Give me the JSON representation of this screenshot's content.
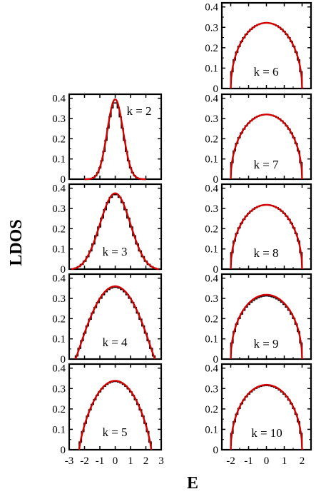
{
  "axes": {
    "xlabel": "E",
    "ylabel": "LDOS"
  },
  "colors": {
    "histogram": "#000000",
    "curve": "#d40000"
  },
  "chart_data": [
    {
      "type": "line",
      "label": "k = 2",
      "bandwidth": 2,
      "curve_peak": 0.395,
      "hist_peak": 0.38,
      "ylim": [
        0,
        0.42
      ],
      "yticks": [
        "0",
        "0.1",
        "0.2",
        "0.3",
        "0.4"
      ],
      "xlim": [
        -3,
        3
      ]
    },
    {
      "type": "line",
      "label": "k = 3",
      "bandwidth": 2.85,
      "curve_peak": 0.375,
      "hist_peak": 0.37,
      "ylim": [
        0,
        0.42
      ],
      "yticks": [
        "0",
        "0.1",
        "0.2",
        "0.3",
        "0.4"
      ],
      "xlim": [
        -3,
        3
      ]
    },
    {
      "type": "line",
      "label": "k = 4",
      "bandwidth": 2.6,
      "curve_peak": 0.36,
      "hist_peak": 0.355,
      "ylim": [
        0,
        0.42
      ],
      "yticks": [
        "0",
        "0.1",
        "0.2",
        "0.3",
        "0.4"
      ],
      "xlim": [
        -3,
        3
      ]
    },
    {
      "type": "line",
      "label": "k = 5",
      "bandwidth": 2.35,
      "curve_peak": 0.338,
      "hist_peak": 0.335,
      "ylim": [
        0,
        0.42
      ],
      "yticks": [
        "0",
        "0.1",
        "0.2",
        "0.3",
        "0.4"
      ],
      "xlim": [
        -3,
        3
      ],
      "xticks": [
        "-3",
        "-2",
        "-1",
        "0",
        "1",
        "2",
        "3"
      ]
    },
    {
      "type": "line",
      "label": "k = 6",
      "bandwidth": 2.0,
      "curve_peak": 0.322,
      "hist_peak": 0.322,
      "ylim": [
        0,
        0.42
      ],
      "yticks": [
        "0",
        "0.1",
        "0.2",
        "0.3",
        "0.4"
      ],
      "xlim": [
        -2.5,
        2.5
      ]
    },
    {
      "type": "line",
      "label": "k = 7",
      "bandwidth": 2.0,
      "curve_peak": 0.32,
      "hist_peak": 0.32,
      "ylim": [
        0,
        0.42
      ],
      "yticks": [
        "0",
        "0.1",
        "0.2",
        "0.3",
        "0.4"
      ],
      "xlim": [
        -2.5,
        2.5
      ]
    },
    {
      "type": "line",
      "label": "k = 8",
      "bandwidth": 2.0,
      "curve_peak": 0.318,
      "hist_peak": 0.318,
      "ylim": [
        0,
        0.42
      ],
      "yticks": [
        "0",
        "0.1",
        "0.2",
        "0.3",
        "0.4"
      ],
      "xlim": [
        -2.5,
        2.5
      ]
    },
    {
      "type": "line",
      "label": "k = 9",
      "bandwidth": 2.0,
      "curve_peak": 0.318,
      "hist_peak": 0.312,
      "ylim": [
        0,
        0.42
      ],
      "yticks": [
        "0",
        "0.1",
        "0.2",
        "0.3",
        "0.4"
      ],
      "xlim": [
        -2.5,
        2.5
      ]
    },
    {
      "type": "line",
      "label": "k = 10",
      "bandwidth": 2.0,
      "curve_peak": 0.318,
      "hist_peak": 0.315,
      "ylim": [
        0,
        0.42
      ],
      "yticks": [
        "0",
        "0.1",
        "0.2",
        "0.3",
        "0.4"
      ],
      "xlim": [
        -2.5,
        2.5
      ],
      "xticks": [
        "-2",
        "-1",
        "0",
        "1",
        "2"
      ]
    }
  ]
}
